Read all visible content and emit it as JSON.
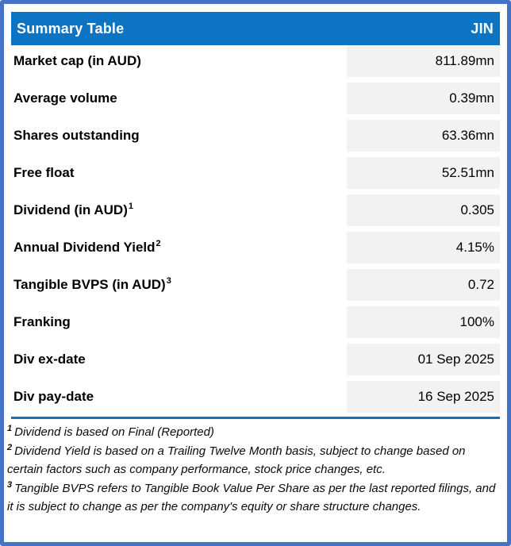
{
  "header": {
    "title": "Summary Table",
    "ticker": "JIN"
  },
  "rows": [
    {
      "label": "Market cap (in AUD)",
      "sup": "",
      "value": "811.89mn"
    },
    {
      "label": "Average volume",
      "sup": "",
      "value": "0.39mn"
    },
    {
      "label": "Shares outstanding",
      "sup": "",
      "value": "63.36mn"
    },
    {
      "label": "Free float",
      "sup": "",
      "value": "52.51mn"
    },
    {
      "label": "Dividend (in AUD)",
      "sup": "1",
      "value": "0.305"
    },
    {
      "label": "Annual Dividend Yield",
      "sup": "2",
      "value": "4.15%"
    },
    {
      "label": "Tangible BVPS (in AUD)",
      "sup": "3",
      "value": "0.72"
    },
    {
      "label": "Franking",
      "sup": "",
      "value": "100%"
    },
    {
      "label": "Div ex-date",
      "sup": "",
      "value": "01 Sep 2025"
    },
    {
      "label": "Div pay-date",
      "sup": "",
      "value": "16 Sep 2025"
    }
  ],
  "footnotes": [
    {
      "sup": "1",
      "text": "Dividend is based on Final (Reported)"
    },
    {
      "sup": "2",
      "text": "Dividend Yield is based on a Trailing Twelve Month basis, subject to change based on certain factors such as company performance, stock price changes, etc."
    },
    {
      "sup": "3",
      "text": "Tangible BVPS refers to Tangible Book Value Per Share as per the last reported filings, and it is subject to change as per the company's equity or share structure changes."
    }
  ],
  "colors": {
    "border": "#4472C4",
    "header_bg": "#0D73C3",
    "header_text": "#FFFFFF",
    "value_cell_bg": "#F2F2F2",
    "divider": "#0D73C3",
    "text": "#000000"
  }
}
